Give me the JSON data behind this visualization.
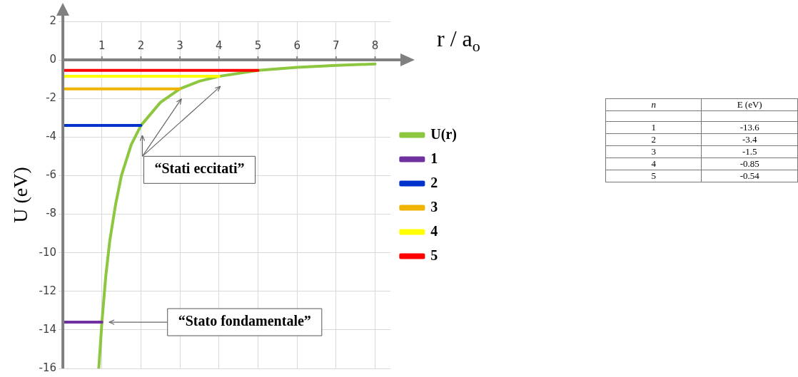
{
  "chart_data": [
    {
      "type": "line",
      "xlabel": "r / a$_{o}$",
      "ylabel": "U (eV)",
      "xlim": [
        0,
        8.4
      ],
      "ylim": [
        -16,
        2
      ],
      "xticks": [
        1,
        2,
        3,
        4,
        5,
        6,
        7,
        8
      ],
      "yticks": [
        2,
        0,
        -2,
        -4,
        -6,
        -8,
        -10,
        -12,
        -14,
        -16
      ],
      "grid": true,
      "legend": "right",
      "marker": "none",
      "line_style": "solid",
      "series": [
        {
          "name": "U(r)",
          "color": "#8dc63f",
          "x": [
            0.92,
            1,
            1.1,
            1.2,
            1.35,
            1.5,
            1.75,
            2,
            2.5,
            3,
            3.5,
            4,
            5,
            6,
            7,
            8
          ],
          "values": [
            -16,
            -13.6,
            -11.2,
            -9.4,
            -7.5,
            -6,
            -4.4,
            -3.4,
            -2.2,
            -1.5,
            -1.1,
            -0.85,
            -0.54,
            -0.38,
            -0.28,
            -0.21
          ]
        },
        {
          "name": "1",
          "color": "#7030a0",
          "x": [
            0,
            1
          ],
          "values": [
            -13.6,
            -13.6
          ]
        },
        {
          "name": "2",
          "color": "#0033cc",
          "x": [
            0,
            2
          ],
          "values": [
            -3.4,
            -3.4
          ]
        },
        {
          "name": "3",
          "color": "#f0b400",
          "x": [
            0,
            3
          ],
          "values": [
            -1.5,
            -1.5
          ]
        },
        {
          "name": "4",
          "color": "#ffff00",
          "x": [
            0,
            4
          ],
          "values": [
            -0.85,
            -0.85
          ]
        },
        {
          "name": "5",
          "color": "#ff0000",
          "x": [
            0,
            5
          ],
          "values": [
            -0.54,
            -0.54
          ]
        }
      ],
      "annotations": [
        "“Stato fondamentale”",
        "“Stati eccitati”"
      ]
    },
    {
      "type": "heatmap",
      "xlabel": "n",
      "categories": [
        "E (eV)"
      ],
      "y_categories": [
        "1",
        "2",
        "3",
        "4",
        "5"
      ],
      "cells": [
        [
          -13.6
        ],
        [
          -3.4
        ],
        [
          -1.5
        ],
        [
          -0.85
        ],
        [
          -0.54
        ]
      ],
      "data_labels": true
    }
  ]
}
